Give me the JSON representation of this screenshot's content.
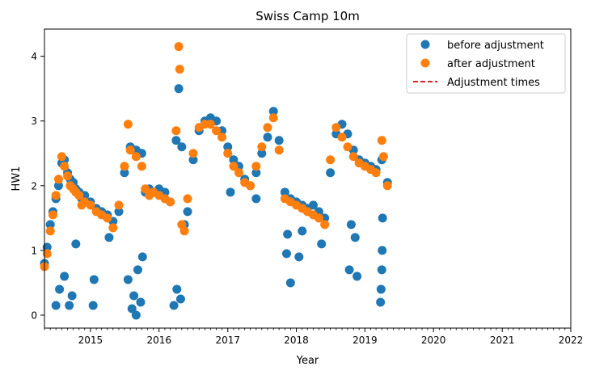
{
  "chart_data": {
    "type": "scatter",
    "title": "Swiss Camp 10m",
    "xlabel": "Year",
    "ylabel": "HW1",
    "xlim": [
      "2014-05-01",
      "2022-01-01"
    ],
    "ylim": [
      -0.2,
      4.42
    ],
    "x_ticks": [
      "2015",
      "2016",
      "2017",
      "2018",
      "2019",
      "2020",
      "2021",
      "2022"
    ],
    "y_ticks": [
      "0",
      "1",
      "2",
      "3",
      "4"
    ],
    "grid": false,
    "legend_position": "top-right",
    "legend": [
      {
        "label": "before adjustment",
        "marker": "circle",
        "color": "#1f77b4"
      },
      {
        "label": "after adjustment",
        "marker": "circle",
        "color": "#ff7f0e"
      },
      {
        "label": "Adjustment times",
        "marker": "dashed-line",
        "color": "#d62728"
      }
    ],
    "series": [
      {
        "name": "before adjustment",
        "color": "#1f77b4",
        "points": [
          [
            "2014-05-01",
            0.8
          ],
          [
            "2014-05-15",
            1.05
          ],
          [
            "2014-06-01",
            1.4
          ],
          [
            "2014-06-15",
            1.6
          ],
          [
            "2014-07-01",
            1.8
          ],
          [
            "2014-07-15",
            2.0
          ],
          [
            "2014-08-01",
            2.35
          ],
          [
            "2014-08-15",
            2.4
          ],
          [
            "2014-09-01",
            2.2
          ],
          [
            "2014-09-15",
            2.1
          ],
          [
            "2014-10-01",
            2.05
          ],
          [
            "2014-10-15",
            1.95
          ],
          [
            "2014-11-01",
            1.9
          ],
          [
            "2014-11-15",
            1.8
          ],
          [
            "2014-12-01",
            1.85
          ],
          [
            "2015-01-01",
            1.75
          ],
          [
            "2015-02-01",
            1.65
          ],
          [
            "2015-03-01",
            1.6
          ],
          [
            "2015-04-01",
            1.55
          ],
          [
            "2015-05-01",
            1.45
          ],
          [
            "2015-06-01",
            1.6
          ],
          [
            "2015-07-01",
            2.2
          ],
          [
            "2015-08-01",
            2.6
          ],
          [
            "2015-09-01",
            2.55
          ],
          [
            "2015-10-01",
            2.5
          ],
          [
            "2015-10-20",
            1.9
          ],
          [
            "2015-11-10",
            1.95
          ],
          [
            "2015-12-01",
            1.9
          ],
          [
            "2016-01-01",
            1.95
          ],
          [
            "2016-02-01",
            1.9
          ],
          [
            "2016-03-01",
            1.75
          ],
          [
            "2016-04-01",
            2.7
          ],
          [
            "2016-04-15",
            3.5
          ],
          [
            "2016-05-01",
            2.6
          ],
          [
            "2016-05-15",
            1.4
          ],
          [
            "2016-06-01",
            1.6
          ],
          [
            "2016-07-01",
            2.4
          ],
          [
            "2016-08-01",
            2.85
          ],
          [
            "2016-09-01",
            3.0
          ],
          [
            "2016-10-01",
            3.05
          ],
          [
            "2016-11-01",
            3.0
          ],
          [
            "2016-12-01",
            2.85
          ],
          [
            "2017-01-01",
            2.6
          ],
          [
            "2017-02-01",
            2.4
          ],
          [
            "2017-03-01",
            2.3
          ],
          [
            "2017-04-01",
            2.1
          ],
          [
            "2017-05-01",
            2.0
          ],
          [
            "2017-06-01",
            2.2
          ],
          [
            "2017-07-01",
            2.5
          ],
          [
            "2017-08-01",
            2.75
          ],
          [
            "2017-09-01",
            3.15
          ],
          [
            "2017-10-01",
            2.7
          ],
          [
            "2017-11-01",
            1.9
          ],
          [
            "2017-12-01",
            1.8
          ],
          [
            "2018-01-01",
            1.75
          ],
          [
            "2018-02-01",
            1.7
          ],
          [
            "2018-03-01",
            1.65
          ],
          [
            "2018-04-01",
            1.7
          ],
          [
            "2018-05-01",
            1.6
          ],
          [
            "2018-06-01",
            1.5
          ],
          [
            "2018-07-01",
            2.2
          ],
          [
            "2018-08-01",
            2.8
          ],
          [
            "2018-09-01",
            2.95
          ],
          [
            "2018-10-01",
            2.8
          ],
          [
            "2018-11-01",
            2.55
          ],
          [
            "2018-12-01",
            2.4
          ],
          [
            "2019-01-01",
            2.35
          ],
          [
            "2019-02-01",
            2.3
          ],
          [
            "2019-03-01",
            2.25
          ],
          [
            "2019-04-01",
            2.4
          ],
          [
            "2019-05-01",
            2.05
          ],
          [
            "2014-07-01",
            0.15
          ],
          [
            "2014-07-20",
            0.4
          ],
          [
            "2014-08-15",
            0.6
          ],
          [
            "2014-09-10",
            0.15
          ],
          [
            "2014-09-25",
            0.3
          ],
          [
            "2014-10-15",
            1.1
          ],
          [
            "2015-01-15",
            0.15
          ],
          [
            "2015-01-20",
            0.55
          ],
          [
            "2015-04-10",
            1.2
          ],
          [
            "2015-07-20",
            0.55
          ],
          [
            "2015-08-10",
            0.1
          ],
          [
            "2015-08-20",
            0.3
          ],
          [
            "2015-09-01",
            0.0
          ],
          [
            "2015-09-10",
            0.7
          ],
          [
            "2015-09-25",
            0.2
          ],
          [
            "2015-10-05",
            0.9
          ],
          [
            "2016-03-20",
            0.15
          ],
          [
            "2016-04-05",
            0.4
          ],
          [
            "2016-04-25",
            0.25
          ],
          [
            "2017-01-15",
            1.9
          ],
          [
            "2017-06-01",
            1.8
          ],
          [
            "2017-11-10",
            0.95
          ],
          [
            "2017-11-15",
            1.25
          ],
          [
            "2017-12-01",
            0.5
          ],
          [
            "2018-01-15",
            0.9
          ],
          [
            "2018-02-01",
            1.3
          ],
          [
            "2018-05-15",
            1.1
          ],
          [
            "2018-10-10",
            0.7
          ],
          [
            "2018-10-20",
            1.4
          ],
          [
            "2018-11-10",
            1.2
          ],
          [
            "2018-11-20",
            0.6
          ],
          [
            "2019-03-25",
            0.2
          ],
          [
            "2019-03-28",
            0.4
          ],
          [
            "2019-04-01",
            0.7
          ],
          [
            "2019-04-03",
            1.0
          ],
          [
            "2019-04-05",
            1.5
          ]
        ]
      },
      {
        "name": "after adjustment",
        "color": "#ff7f0e",
        "points": [
          [
            "2014-05-01",
            0.75
          ],
          [
            "2014-05-15",
            0.95
          ],
          [
            "2014-06-01",
            1.3
          ],
          [
            "2014-06-15",
            1.55
          ],
          [
            "2014-07-01",
            1.85
          ],
          [
            "2014-07-15",
            2.1
          ],
          [
            "2014-08-01",
            2.45
          ],
          [
            "2014-08-15",
            2.3
          ],
          [
            "2014-09-01",
            2.15
          ],
          [
            "2014-09-15",
            2.0
          ],
          [
            "2014-10-01",
            1.95
          ],
          [
            "2014-10-15",
            1.9
          ],
          [
            "2014-11-01",
            1.85
          ],
          [
            "2014-11-15",
            1.7
          ],
          [
            "2014-12-01",
            1.75
          ],
          [
            "2015-01-01",
            1.7
          ],
          [
            "2015-02-01",
            1.6
          ],
          [
            "2015-03-01",
            1.55
          ],
          [
            "2015-04-01",
            1.5
          ],
          [
            "2015-05-01",
            1.35
          ],
          [
            "2015-06-01",
            1.7
          ],
          [
            "2015-07-01",
            2.3
          ],
          [
            "2015-07-20",
            2.95
          ],
          [
            "2015-08-01",
            2.55
          ],
          [
            "2015-09-01",
            2.45
          ],
          [
            "2015-10-01",
            2.3
          ],
          [
            "2015-10-20",
            1.95
          ],
          [
            "2015-11-10",
            1.85
          ],
          [
            "2015-12-01",
            1.9
          ],
          [
            "2016-01-01",
            1.85
          ],
          [
            "2016-02-01",
            1.8
          ],
          [
            "2016-03-01",
            1.75
          ],
          [
            "2016-04-01",
            2.85
          ],
          [
            "2016-04-15",
            4.15
          ],
          [
            "2016-04-20",
            3.8
          ],
          [
            "2016-05-01",
            1.4
          ],
          [
            "2016-05-15",
            1.3
          ],
          [
            "2016-06-01",
            1.8
          ],
          [
            "2016-07-01",
            2.5
          ],
          [
            "2016-08-01",
            2.9
          ],
          [
            "2016-09-01",
            2.95
          ],
          [
            "2016-10-01",
            2.95
          ],
          [
            "2016-11-01",
            2.85
          ],
          [
            "2016-12-01",
            2.75
          ],
          [
            "2017-01-01",
            2.5
          ],
          [
            "2017-02-01",
            2.3
          ],
          [
            "2017-03-01",
            2.2
          ],
          [
            "2017-04-01",
            2.05
          ],
          [
            "2017-05-01",
            2.0
          ],
          [
            "2017-06-01",
            2.3
          ],
          [
            "2017-07-01",
            2.6
          ],
          [
            "2017-08-01",
            2.9
          ],
          [
            "2017-09-01",
            3.05
          ],
          [
            "2017-10-01",
            2.55
          ],
          [
            "2017-11-01",
            1.8
          ],
          [
            "2017-12-01",
            1.75
          ],
          [
            "2018-01-01",
            1.7
          ],
          [
            "2018-02-01",
            1.65
          ],
          [
            "2018-03-01",
            1.6
          ],
          [
            "2018-04-01",
            1.55
          ],
          [
            "2018-05-01",
            1.5
          ],
          [
            "2018-06-01",
            1.4
          ],
          [
            "2018-07-01",
            2.4
          ],
          [
            "2018-08-01",
            2.9
          ],
          [
            "2018-09-01",
            2.75
          ],
          [
            "2018-10-01",
            2.6
          ],
          [
            "2018-11-01",
            2.45
          ],
          [
            "2018-12-01",
            2.35
          ],
          [
            "2019-01-01",
            2.3
          ],
          [
            "2019-02-01",
            2.25
          ],
          [
            "2019-03-01",
            2.2
          ],
          [
            "2019-04-01",
            2.7
          ],
          [
            "2019-04-10",
            2.45
          ],
          [
            "2019-05-01",
            2.0
          ]
        ]
      }
    ]
  }
}
